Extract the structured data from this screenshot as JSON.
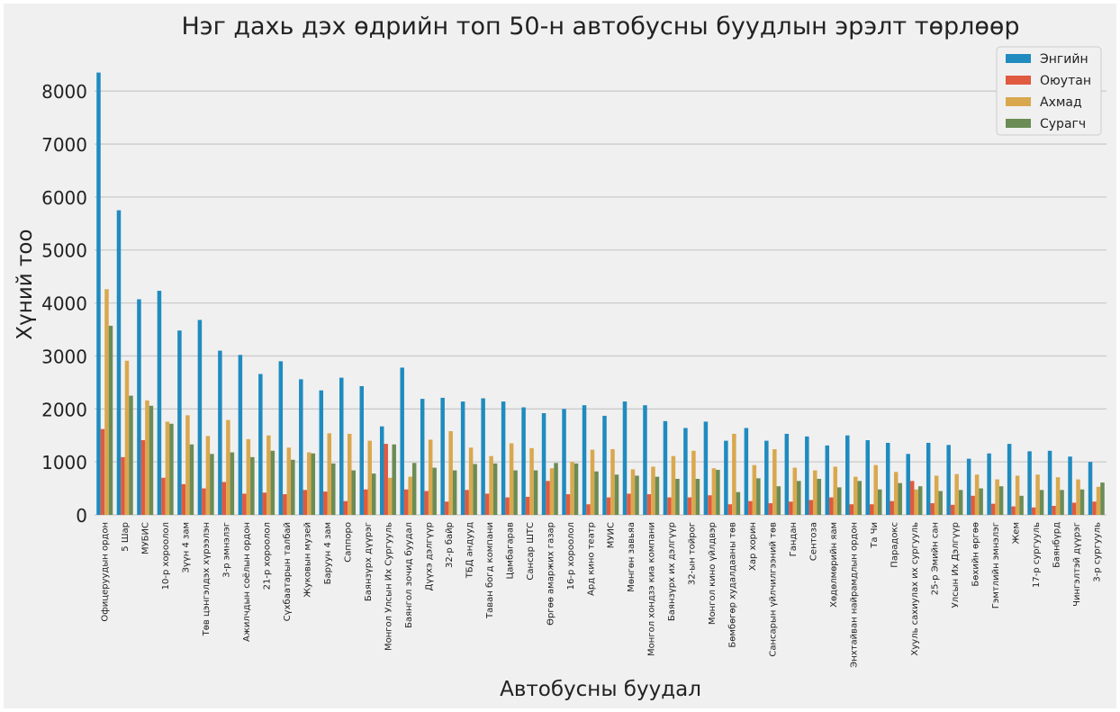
{
  "chart_data": {
    "type": "bar",
    "title": "Нэг дахь дэх өдрийн топ 50-н автобусны буудлын эрэлт төрлөөр",
    "xlabel": "Автобусны буудал",
    "ylabel": "Хүний тоо",
    "ylim": [
      0,
      8700
    ],
    "yticks": [
      0,
      1000,
      2000,
      3000,
      4000,
      5000,
      6000,
      7000,
      8000
    ],
    "grid": true,
    "legend_position": "top-right",
    "colors": [
      "#1f8bbf",
      "#e05a3f",
      "#d9a84e",
      "#6b8c55"
    ],
    "categories": [
      "Офицеруудын ордон",
      "5 Шар",
      "МУБИС",
      "10-р хороолол",
      "Зүүн 4 зам",
      "Төв цэнгэлдэх хүрээлэн",
      "3-р эмнэлэг",
      "Ажилчдын соёлын ордон",
      "21-р хороолол",
      "Сүхбаатарын талбай",
      "Жуковын музей",
      "Баруун 4 зам",
      "Саппоро",
      "Баянзүрх дүүрэг",
      "Монгол Улсын Их Сургууль",
      "Баянгол зочид буудал",
      "Дүүхэ дэлгүүр",
      "32-р байр",
      "ТБД андууд",
      "Таван богд компани",
      "Цамбагарав",
      "Сансар ШТС",
      "Өргөө амаржих газар",
      "16-р хороолол",
      "Ард кино театр",
      "МУИС",
      "Мөнгөн завьяа",
      "Монгол хондзэ киа компани",
      "Баянзүрх их дэлгүүр",
      "32-ын тойрог",
      "Монгол кино үйлдвэр",
      "Бөмбөгөр худалдааны төв",
      "Хар хорин",
      "Сансарын үйлчилгээний төв",
      "Гандан",
      "Сентоза",
      "Хөдөлмөрийн яам",
      "Энхтайван найрамдлын ордон",
      "Та Чи",
      "Парадокс",
      "Хууль сахиулах их сургууль",
      "25-р Эмийн сан",
      "Улсын Их Дэлгүүр",
      "Бөхийн өргөө",
      "Гэмтлийн эмнэлэг",
      "Жем",
      "17-р сургууль",
      "Баянбүрд",
      "Чингэлтэй дүүрэг",
      "3-р сургууль"
    ],
    "series": [
      {
        "name": "Энгийн",
        "values": [
          8350,
          5750,
          4070,
          4230,
          3480,
          3680,
          3100,
          3020,
          2660,
          2900,
          2560,
          2350,
          2590,
          2430,
          1670,
          2780,
          2190,
          2210,
          2140,
          2200,
          2140,
          2030,
          1920,
          2000,
          2070,
          1870,
          2140,
          2070,
          1770,
          1640,
          1760,
          1400,
          1640,
          1400,
          1530,
          1480,
          1310,
          1500,
          1410,
          1360,
          1150,
          1360,
          1320,
          1060,
          1160,
          1340,
          1200,
          1210,
          1100,
          1000
        ]
      },
      {
        "name": "Оюутан",
        "values": [
          1620,
          1090,
          1410,
          700,
          580,
          500,
          620,
          400,
          420,
          390,
          470,
          440,
          260,
          480,
          1340,
          480,
          450,
          250,
          470,
          400,
          330,
          340,
          640,
          390,
          200,
          330,
          400,
          390,
          330,
          330,
          370,
          200,
          260,
          220,
          250,
          280,
          330,
          200,
          200,
          260,
          640,
          220,
          190,
          360,
          210,
          160,
          140,
          170,
          230,
          250
        ]
      },
      {
        "name": "Ахмад",
        "values": [
          4260,
          2910,
          2160,
          1760,
          1880,
          1490,
          1790,
          1430,
          1500,
          1270,
          1180,
          1540,
          1530,
          1400,
          700,
          720,
          1420,
          1580,
          1270,
          1110,
          1350,
          1260,
          880,
          1000,
          1230,
          1240,
          860,
          910,
          1110,
          1210,
          880,
          1530,
          940,
          1240,
          890,
          840,
          910,
          720,
          940,
          810,
          480,
          740,
          770,
          760,
          670,
          740,
          760,
          710,
          670,
          530
        ]
      },
      {
        "name": "Сурагч",
        "values": [
          3570,
          2250,
          2060,
          1720,
          1330,
          1150,
          1180,
          1090,
          1210,
          1040,
          1160,
          970,
          840,
          780,
          1330,
          980,
          890,
          840,
          960,
          970,
          840,
          840,
          980,
          970,
          820,
          760,
          740,
          720,
          680,
          680,
          850,
          430,
          690,
          540,
          640,
          680,
          520,
          640,
          480,
          600,
          540,
          450,
          470,
          500,
          540,
          360,
          470,
          470,
          480,
          610
        ]
      }
    ]
  }
}
